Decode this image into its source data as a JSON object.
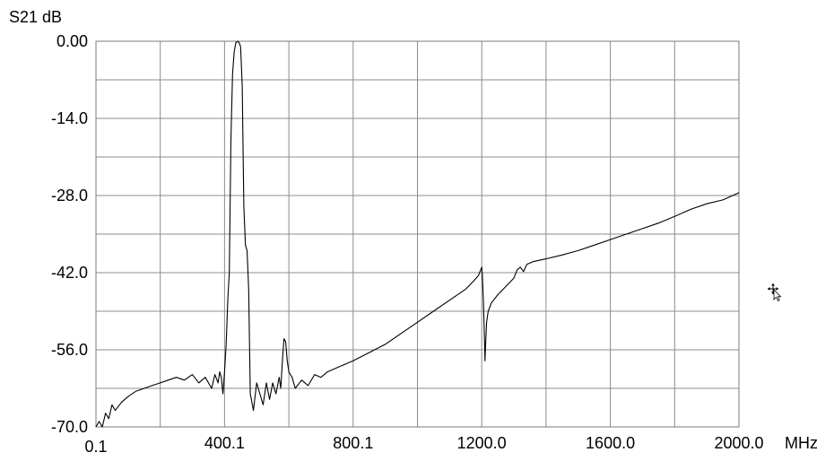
{
  "chart_data": {
    "type": "line",
    "ylabel": "S21 dB",
    "xlabel": "MHz",
    "xlim": [
      0.1,
      2000.0
    ],
    "ylim": [
      -70.0,
      0.0
    ],
    "x_tick_labels": [
      "0.1",
      "400.1",
      "800.1",
      "1200.0",
      "1600.0",
      "2000.0"
    ],
    "x_tick_values": [
      0.1,
      400.1,
      800.1,
      1200.0,
      1600.0,
      2000.0
    ],
    "y_tick_labels": [
      "0.00",
      "-14.0",
      "-28.0",
      "-42.0",
      "-56.0",
      "-70.0"
    ],
    "y_tick_values": [
      0.0,
      -14.0,
      -28.0,
      -42.0,
      -56.0,
      -70.0
    ],
    "grid": true,
    "colors": {
      "trace": "#000000",
      "grid": "#8c8c8c",
      "background": "#ffffff"
    },
    "cursor_icon": "move-cursor-icon",
    "series": [
      {
        "x": [
          0.1,
          10,
          20,
          30,
          40,
          50,
          60,
          80,
          100,
          125,
          150,
          175,
          200,
          225,
          250,
          275,
          300,
          320,
          340,
          360,
          370,
          380,
          385,
          390,
          395,
          400,
          405,
          410,
          415,
          420,
          425,
          430,
          435,
          440,
          445,
          450,
          455,
          460,
          465,
          470,
          475,
          480,
          490,
          500,
          510,
          520,
          530,
          540,
          550,
          560,
          570,
          575,
          580,
          585,
          590,
          595,
          600,
          610,
          620,
          640,
          660,
          680,
          700,
          720,
          740,
          760,
          780,
          800,
          850,
          900,
          950,
          1000,
          1050,
          1100,
          1150,
          1175,
          1190,
          1200,
          1202,
          1205,
          1208,
          1210,
          1212,
          1215,
          1220,
          1230,
          1250,
          1275,
          1300,
          1310,
          1320,
          1330,
          1340,
          1360,
          1400,
          1450,
          1500,
          1550,
          1600,
          1650,
          1700,
          1750,
          1800,
          1850,
          1900,
          1950,
          2000
        ],
        "values": [
          -70.0,
          -69.0,
          -70.0,
          -67.5,
          -68.5,
          -66.0,
          -67.0,
          -65.5,
          -64.5,
          -63.5,
          -63.0,
          -62.5,
          -62.0,
          -61.5,
          -61.0,
          -61.5,
          -60.5,
          -62.0,
          -61.0,
          -63.0,
          -60.5,
          -62.0,
          -60.0,
          -61.0,
          -64.0,
          -60.0,
          -55.0,
          -47.0,
          -42.0,
          -18.0,
          -6.0,
          -2.0,
          -0.3,
          0.0,
          -0.2,
          -1.0,
          -8.0,
          -30.0,
          -37.0,
          -38.0,
          -45.0,
          -64.0,
          -67.0,
          -62.0,
          -64.0,
          -66.0,
          -62.0,
          -65.0,
          -62.0,
          -64.0,
          -61.0,
          -63.0,
          -58.0,
          -54.0,
          -54.5,
          -58.0,
          -60.0,
          -61.0,
          -63.0,
          -61.5,
          -62.5,
          -60.5,
          -61.0,
          -60.0,
          -59.5,
          -59.0,
          -58.5,
          -58.0,
          -56.5,
          -55.0,
          -53.0,
          -51.0,
          -49.0,
          -47.0,
          -45.0,
          -43.5,
          -42.5,
          -41.0,
          -42.5,
          -47.0,
          -53.0,
          -58.0,
          -55.0,
          -51.0,
          -49.0,
          -47.5,
          -46.0,
          -44.5,
          -43.0,
          -41.5,
          -41.0,
          -41.8,
          -40.5,
          -40.0,
          -39.5,
          -38.8,
          -38.0,
          -37.0,
          -36.0,
          -35.0,
          -34.0,
          -33.0,
          -31.8,
          -30.5,
          -29.5,
          -28.8,
          -27.5
        ]
      }
    ]
  }
}
